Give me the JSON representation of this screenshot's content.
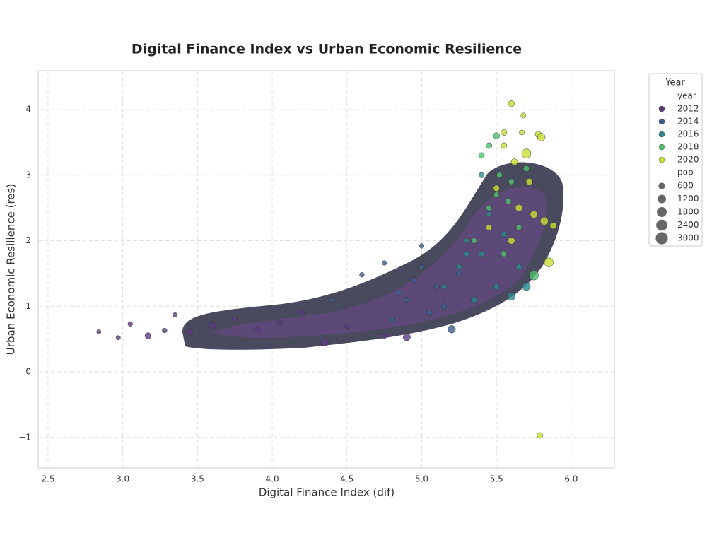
{
  "chart_data": {
    "type": "scatter",
    "title": "Digital Finance Index vs Urban Economic Resilience",
    "x_label": "Digital Finance Index (dif)",
    "y_label": "Urban Economic Resilience (res)",
    "xlim": [
      2.434,
      6.289
    ],
    "ylim": [
      -1.466,
      4.593
    ],
    "xticks": [
      2.5,
      {
        "value": 3,
        "label": "3.0"
      },
      3.5,
      {
        "value": 4,
        "label": "4.0"
      },
      4.5,
      {
        "value": 5,
        "label": "5.0"
      },
      5.5,
      {
        "value": 6,
        "label": "6.0"
      }
    ],
    "yticks": [
      {
        "value": -1,
        "label": "−1"
      },
      0,
      1,
      2,
      3,
      4
    ],
    "grid": true,
    "legend_title": "Year",
    "hue_title": "year",
    "size_title": "pop",
    "size_values": [
      600,
      1200,
      1800,
      2400,
      3000
    ],
    "series": [
      {
        "name": "2012",
        "color": "#5c3a82",
        "x": [
          2.84,
          2.97,
          3.05,
          3.17,
          3.28,
          3.35,
          3.45,
          3.6,
          3.75,
          3.9,
          4.05,
          4.2,
          4.35,
          4.5,
          4.75,
          4.9
        ],
        "values": [
          0.61,
          0.52,
          0.73,
          0.55,
          0.63,
          0.87,
          0.6,
          0.7,
          0.8,
          0.65,
          0.75,
          0.9,
          0.45,
          0.7,
          0.55,
          0.53
        ],
        "sizes": [
          150,
          150,
          200,
          500,
          200,
          150,
          300,
          600,
          250,
          400,
          300,
          200,
          900,
          250,
          300,
          800
        ]
      },
      {
        "name": "2014",
        "color": "#3b5f8d",
        "x": [
          4.4,
          4.6,
          4.75,
          4.85,
          4.95,
          5.0,
          5.05,
          5.1,
          5.15,
          5.2,
          5.25,
          4.8,
          4.9,
          5.0
        ],
        "values": [
          1.1,
          1.48,
          1.66,
          1.2,
          1.4,
          1.92,
          0.9,
          1.3,
          1.0,
          0.65,
          1.5,
          0.8,
          1.1,
          1.6
        ],
        "sizes": [
          200,
          200,
          200,
          300,
          250,
          200,
          400,
          300,
          350,
          900,
          300,
          250,
          300,
          250
        ]
      },
      {
        "name": "2016",
        "color": "#2a8a8c",
        "x": [
          5.15,
          5.25,
          5.3,
          5.35,
          5.4,
          5.45,
          5.5,
          5.55,
          5.6,
          5.65,
          5.7,
          5.3,
          5.4
        ],
        "values": [
          1.3,
          1.6,
          2.0,
          1.1,
          1.8,
          2.4,
          1.3,
          2.1,
          1.15,
          1.6,
          1.3,
          1.8,
          3.0
        ],
        "sizes": [
          300,
          300,
          250,
          400,
          350,
          300,
          400,
          350,
          900,
          400,
          1000,
          300,
          300
        ]
      },
      {
        "name": "2018",
        "color": "#4fbf6f",
        "x": [
          5.35,
          5.4,
          5.45,
          5.5,
          5.55,
          5.6,
          5.65,
          5.7,
          5.75,
          5.45,
          5.5,
          5.58,
          5.52
        ],
        "values": [
          2.0,
          3.3,
          2.5,
          3.6,
          1.8,
          2.9,
          2.2,
          3.1,
          1.47,
          3.45,
          2.7,
          2.6,
          3.0
        ],
        "sizes": [
          350,
          400,
          350,
          500,
          400,
          400,
          350,
          450,
          1500,
          400,
          350,
          400,
          350
        ]
      },
      {
        "name": "2020",
        "color": "#c8df34",
        "x": [
          5.45,
          5.5,
          5.55,
          5.6,
          5.62,
          5.65,
          5.68,
          5.7,
          5.72,
          5.75,
          5.78,
          5.8,
          5.82,
          5.85,
          5.88,
          5.6,
          5.79,
          5.55,
          5.67
        ],
        "values": [
          2.2,
          2.8,
          3.45,
          4.09,
          3.2,
          2.5,
          3.91,
          3.33,
          2.9,
          2.4,
          3.62,
          3.58,
          2.3,
          1.67,
          2.23,
          2.0,
          -0.97,
          3.65,
          3.65
        ],
        "sizes": [
          400,
          500,
          400,
          500,
          600,
          700,
          250,
          1500,
          600,
          800,
          500,
          900,
          1000,
          1400,
          600,
          700,
          400,
          400,
          250
        ]
      }
    ]
  }
}
